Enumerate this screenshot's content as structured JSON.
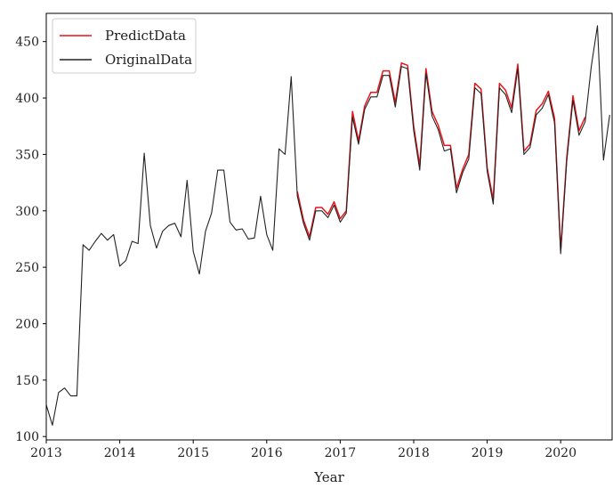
{
  "chart_data": {
    "type": "line",
    "title": "",
    "xlabel": "Year",
    "ylabel": "",
    "xlim": [
      2013.0,
      2020.7
    ],
    "ylim": [
      97,
      475
    ],
    "x_ticks": [
      2013,
      2014,
      2015,
      2016,
      2017,
      2018,
      2019,
      2020
    ],
    "x_tick_labels": [
      "2013",
      "2014",
      "2015",
      "2016",
      "2017",
      "2018",
      "2019",
      "2020"
    ],
    "y_ticks": [
      100,
      150,
      200,
      250,
      300,
      350,
      400,
      450
    ],
    "y_tick_labels": [
      "100",
      "150",
      "200",
      "250",
      "300",
      "350",
      "400",
      "450"
    ],
    "grid": false,
    "legend_position": "top-left",
    "series": [
      {
        "name": "PredictData",
        "color": "#e8141a",
        "x": [
          2016.417,
          2016.5,
          2016.583,
          2016.667,
          2016.75,
          2016.833,
          2016.917,
          2017.0,
          2017.083,
          2017.167,
          2017.25,
          2017.333,
          2017.417,
          2017.5,
          2017.583,
          2017.667,
          2017.75,
          2017.833,
          2017.917,
          2018.0,
          2018.083,
          2018.167,
          2018.25,
          2018.333,
          2018.417,
          2018.5,
          2018.583,
          2018.667,
          2018.75,
          2018.833,
          2018.917,
          2019.0,
          2019.083,
          2019.167,
          2019.25,
          2019.333,
          2019.417,
          2019.5,
          2019.583,
          2019.667,
          2019.75,
          2019.833,
          2019.917,
          2020.0,
          2020.083,
          2020.167,
          2020.25,
          2020.333
        ],
        "y": [
          317,
          292,
          277,
          303,
          303,
          297,
          308,
          293,
          300,
          388,
          362,
          393,
          405,
          405,
          424,
          424,
          396,
          431,
          429,
          375,
          340,
          426,
          388,
          376,
          358,
          358,
          320,
          337,
          350,
          413,
          408,
          338,
          310,
          413,
          407,
          391,
          430,
          353,
          359,
          389,
          395,
          406,
          382,
          265,
          347,
          402,
          371,
          383
        ]
      },
      {
        "name": "OriginalData",
        "color": "#222222",
        "x": [
          2013.0,
          2013.083,
          2013.167,
          2013.25,
          2013.333,
          2013.417,
          2013.5,
          2013.583,
          2013.667,
          2013.75,
          2013.833,
          2013.917,
          2014.0,
          2014.083,
          2014.167,
          2014.25,
          2014.333,
          2014.417,
          2014.5,
          2014.583,
          2014.667,
          2014.75,
          2014.833,
          2014.917,
          2015.0,
          2015.083,
          2015.167,
          2015.25,
          2015.333,
          2015.417,
          2015.5,
          2015.583,
          2015.667,
          2015.75,
          2015.833,
          2015.917,
          2016.0,
          2016.083,
          2016.167,
          2016.25,
          2016.333,
          2016.417,
          2016.5,
          2016.583,
          2016.667,
          2016.75,
          2016.833,
          2016.917,
          2017.0,
          2017.083,
          2017.167,
          2017.25,
          2017.333,
          2017.417,
          2017.5,
          2017.583,
          2017.667,
          2017.75,
          2017.833,
          2017.917,
          2018.0,
          2018.083,
          2018.167,
          2018.25,
          2018.333,
          2018.417,
          2018.5,
          2018.583,
          2018.667,
          2018.75,
          2018.833,
          2018.917,
          2019.0,
          2019.083,
          2019.167,
          2019.25,
          2019.333,
          2019.417,
          2019.5,
          2019.583,
          2019.667,
          2019.75,
          2019.833,
          2019.917,
          2020.0,
          2020.083,
          2020.167,
          2020.25,
          2020.333,
          2020.417,
          2020.5,
          2020.583,
          2020.667
        ],
        "y": [
          128,
          110,
          139,
          143,
          136,
          136,
          270,
          265,
          273,
          280,
          274,
          279,
          251,
          256,
          273,
          271,
          351,
          287,
          267,
          282,
          287,
          289,
          277,
          327,
          264,
          244,
          282,
          298,
          336,
          336,
          290,
          283,
          284,
          275,
          276,
          313,
          279,
          265,
          355,
          350,
          419,
          313,
          289,
          274,
          300,
          300,
          294,
          305,
          290,
          298,
          383,
          359,
          390,
          401,
          401,
          420,
          420,
          392,
          428,
          426,
          371,
          336,
          422,
          384,
          372,
          353,
          355,
          316,
          334,
          346,
          409,
          404,
          335,
          306,
          409,
          403,
          387,
          426,
          350,
          356,
          385,
          391,
          403,
          378,
          262,
          344,
          398,
          367,
          379,
          428,
          464,
          345,
          385
        ]
      }
    ]
  }
}
